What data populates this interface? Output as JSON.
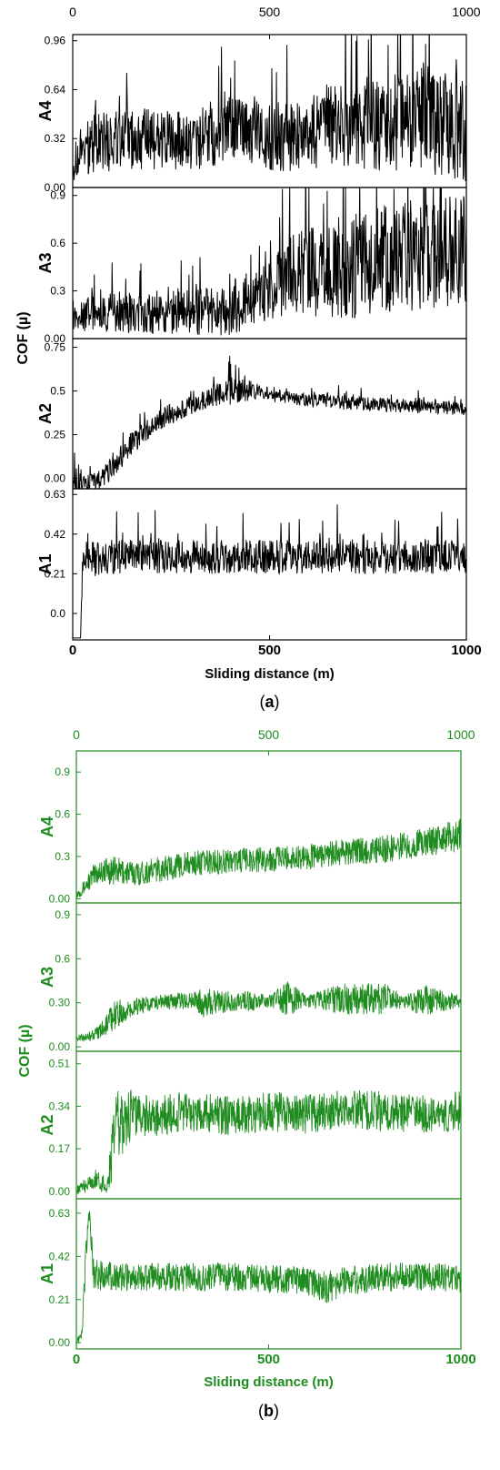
{
  "chart_data": [
    {
      "type": "line",
      "caption_open": "(",
      "caption_letter": "a",
      "caption_close": ")",
      "color": "#000000",
      "xlabel": "Sliding distance (m)",
      "ylabel": "COF (µ)",
      "xlim": [
        0,
        1000
      ],
      "x_ticks": [
        "0",
        "500",
        "1000"
      ],
      "panels": [
        {
          "name": "A4",
          "ylim": [
            0.0,
            1.0
          ],
          "ticks": [
            {
              "v": 0.0,
              "t": "0.00"
            },
            {
              "v": 0.32,
              "t": "0.32"
            },
            {
              "v": 0.64,
              "t": "0.64"
            },
            {
              "v": 0.96,
              "t": "0.96"
            }
          ]
        },
        {
          "name": "A3",
          "ylim": [
            0.0,
            0.95
          ],
          "ticks": [
            {
              "v": 0.0,
              "t": "0.00"
            },
            {
              "v": 0.3,
              "t": "0.3"
            },
            {
              "v": 0.6,
              "t": "0.6"
            },
            {
              "v": 0.9,
              "t": "0.9"
            }
          ]
        },
        {
          "name": "A2",
          "ylim": [
            -0.06,
            0.8
          ],
          "ticks": [
            {
              "v": 0.0,
              "t": "0.00"
            },
            {
              "v": 0.25,
              "t": "0.25"
            },
            {
              "v": 0.5,
              "t": "0.5"
            },
            {
              "v": 0.75,
              "t": "0.75"
            }
          ]
        },
        {
          "name": "A1",
          "ylim": [
            -0.14,
            0.66
          ],
          "ticks": [
            {
              "v": 0.0,
              "t": "0.0"
            },
            {
              "v": 0.21,
              "t": "0.21"
            },
            {
              "v": 0.42,
              "t": "0.42"
            },
            {
              "v": 0.63,
              "t": "0.63"
            }
          ]
        }
      ],
      "series": [
        {
          "panel": "A4",
          "x": [
            0,
            50,
            100,
            200,
            300,
            400,
            500,
            600,
            700,
            800,
            900,
            1000
          ],
          "y": [
            0.15,
            0.3,
            0.3,
            0.32,
            0.3,
            0.38,
            0.33,
            0.35,
            0.45,
            0.4,
            0.45,
            0.35
          ],
          "noise": [
            0.12,
            0.2,
            0.2,
            0.2,
            0.2,
            0.22,
            0.22,
            0.25,
            0.32,
            0.3,
            0.35,
            0.35
          ]
        },
        {
          "panel": "A3",
          "x": [
            0,
            100,
            200,
            300,
            400,
            500,
            550,
            600,
            700,
            800,
            900,
            1000
          ],
          "y": [
            0.15,
            0.17,
            0.15,
            0.17,
            0.17,
            0.3,
            0.4,
            0.42,
            0.45,
            0.5,
            0.52,
            0.55
          ],
          "noise": [
            0.1,
            0.13,
            0.13,
            0.15,
            0.15,
            0.18,
            0.25,
            0.3,
            0.33,
            0.35,
            0.35,
            0.35
          ]
        },
        {
          "panel": "A2",
          "x": [
            0,
            30,
            60,
            100,
            150,
            200,
            250,
            300,
            350,
            400,
            450,
            500,
            550,
            600,
            700,
            800,
            900,
            1000
          ],
          "y": [
            0.05,
            -0.04,
            -0.02,
            0.05,
            0.2,
            0.3,
            0.37,
            0.42,
            0.47,
            0.5,
            0.5,
            0.48,
            0.46,
            0.45,
            0.43,
            0.42,
            0.41,
            0.4
          ],
          "noise": [
            0.15,
            0.05,
            0.05,
            0.07,
            0.07,
            0.06,
            0.06,
            0.06,
            0.06,
            0.08,
            0.06,
            0.04,
            0.04,
            0.04,
            0.04,
            0.04,
            0.04,
            0.04
          ]
        },
        {
          "panel": "A1",
          "x": [
            0,
            20,
            25,
            40,
            100,
            200,
            300,
            400,
            500,
            600,
            700,
            800,
            900,
            1000
          ],
          "y": [
            -0.13,
            -0.13,
            0.28,
            0.29,
            0.3,
            0.3,
            0.3,
            0.3,
            0.3,
            0.3,
            0.3,
            0.3,
            0.3,
            0.3
          ],
          "noise": [
            0.0,
            0.0,
            0.08,
            0.1,
            0.09,
            0.09,
            0.09,
            0.09,
            0.09,
            0.09,
            0.09,
            0.09,
            0.09,
            0.09
          ]
        }
      ]
    },
    {
      "type": "line",
      "caption_open": "(",
      "caption_letter": "b",
      "caption_close": ")",
      "color": "#1e8c1e",
      "xlabel": "Sliding distance (m)",
      "ylabel": "COF (µ)",
      "xlim": [
        0,
        1000
      ],
      "x_ticks": [
        "0",
        "500",
        "1000"
      ],
      "panels": [
        {
          "name": "A4",
          "ylim": [
            -0.03,
            1.05
          ],
          "ticks": [
            {
              "v": 0.0,
              "t": "0.00"
            },
            {
              "v": 0.3,
              "t": "0.3"
            },
            {
              "v": 0.6,
              "t": "0.6"
            },
            {
              "v": 0.9,
              "t": "0.9"
            }
          ]
        },
        {
          "name": "A3",
          "ylim": [
            -0.03,
            0.98
          ],
          "ticks": [
            {
              "v": 0.0,
              "t": "0.00"
            },
            {
              "v": 0.3,
              "t": "0.30"
            },
            {
              "v": 0.6,
              "t": "0.6"
            },
            {
              "v": 0.9,
              "t": "0.9"
            }
          ]
        },
        {
          "name": "A2",
          "ylim": [
            -0.03,
            0.56
          ],
          "ticks": [
            {
              "v": 0.0,
              "t": "0.00"
            },
            {
              "v": 0.17,
              "t": "0.17"
            },
            {
              "v": 0.34,
              "t": "0.34"
            },
            {
              "v": 0.51,
              "t": "0.51"
            }
          ]
        },
        {
          "name": "A1",
          "ylim": [
            -0.03,
            0.7
          ],
          "ticks": [
            {
              "v": 0.0,
              "t": "0.00"
            },
            {
              "v": 0.21,
              "t": "0.21"
            },
            {
              "v": 0.42,
              "t": "0.42"
            },
            {
              "v": 0.63,
              "t": "0.63"
            }
          ]
        }
      ],
      "series": [
        {
          "panel": "A4",
          "x": [
            0,
            20,
            40,
            60,
            100,
            150,
            200,
            300,
            400,
            500,
            600,
            700,
            800,
            900,
            1000
          ],
          "y": [
            0.03,
            0.08,
            0.15,
            0.2,
            0.2,
            0.18,
            0.2,
            0.25,
            0.27,
            0.28,
            0.3,
            0.33,
            0.35,
            0.4,
            0.45
          ],
          "noise": [
            0.03,
            0.05,
            0.08,
            0.1,
            0.1,
            0.09,
            0.09,
            0.09,
            0.09,
            0.09,
            0.09,
            0.09,
            0.1,
            0.1,
            0.12
          ]
        },
        {
          "panel": "A3",
          "x": [
            0,
            30,
            60,
            80,
            100,
            150,
            200,
            300,
            330,
            400,
            450,
            500,
            550,
            600,
            650,
            700,
            800,
            850,
            900,
            1000
          ],
          "y": [
            0.06,
            0.07,
            0.1,
            0.15,
            0.22,
            0.27,
            0.3,
            0.32,
            0.3,
            0.31,
            0.31,
            0.31,
            0.33,
            0.31,
            0.32,
            0.33,
            0.33,
            0.3,
            0.32,
            0.31
          ],
          "noise": [
            0.02,
            0.03,
            0.05,
            0.08,
            0.1,
            0.06,
            0.05,
            0.06,
            0.1,
            0.07,
            0.07,
            0.04,
            0.12,
            0.04,
            0.08,
            0.11,
            0.11,
            0.04,
            0.11,
            0.04
          ]
        },
        {
          "panel": "A2",
          "x": [
            0,
            20,
            50,
            80,
            90,
            100,
            150,
            200,
            300,
            400,
            500,
            600,
            700,
            800,
            900,
            1000
          ],
          "y": [
            0.0,
            0.02,
            0.05,
            0.02,
            0.1,
            0.25,
            0.32,
            0.3,
            0.32,
            0.3,
            0.32,
            0.31,
            0.33,
            0.32,
            0.31,
            0.32
          ],
          "noise": [
            0.02,
            0.03,
            0.04,
            0.03,
            0.1,
            0.15,
            0.1,
            0.08,
            0.08,
            0.08,
            0.08,
            0.08,
            0.08,
            0.08,
            0.08,
            0.08
          ]
        },
        {
          "panel": "A1",
          "x": [
            0,
            15,
            25,
            30,
            35,
            40,
            45,
            100,
            200,
            300,
            400,
            500,
            600,
            650,
            700,
            800,
            900,
            1000
          ],
          "y": [
            0.0,
            0.05,
            0.4,
            0.6,
            0.62,
            0.5,
            0.33,
            0.32,
            0.32,
            0.32,
            0.32,
            0.31,
            0.3,
            0.27,
            0.3,
            0.32,
            0.32,
            0.31
          ],
          "noise": [
            0.0,
            0.05,
            0.1,
            0.05,
            0.05,
            0.1,
            0.08,
            0.07,
            0.07,
            0.07,
            0.07,
            0.07,
            0.07,
            0.08,
            0.07,
            0.07,
            0.07,
            0.07
          ]
        }
      ]
    }
  ]
}
